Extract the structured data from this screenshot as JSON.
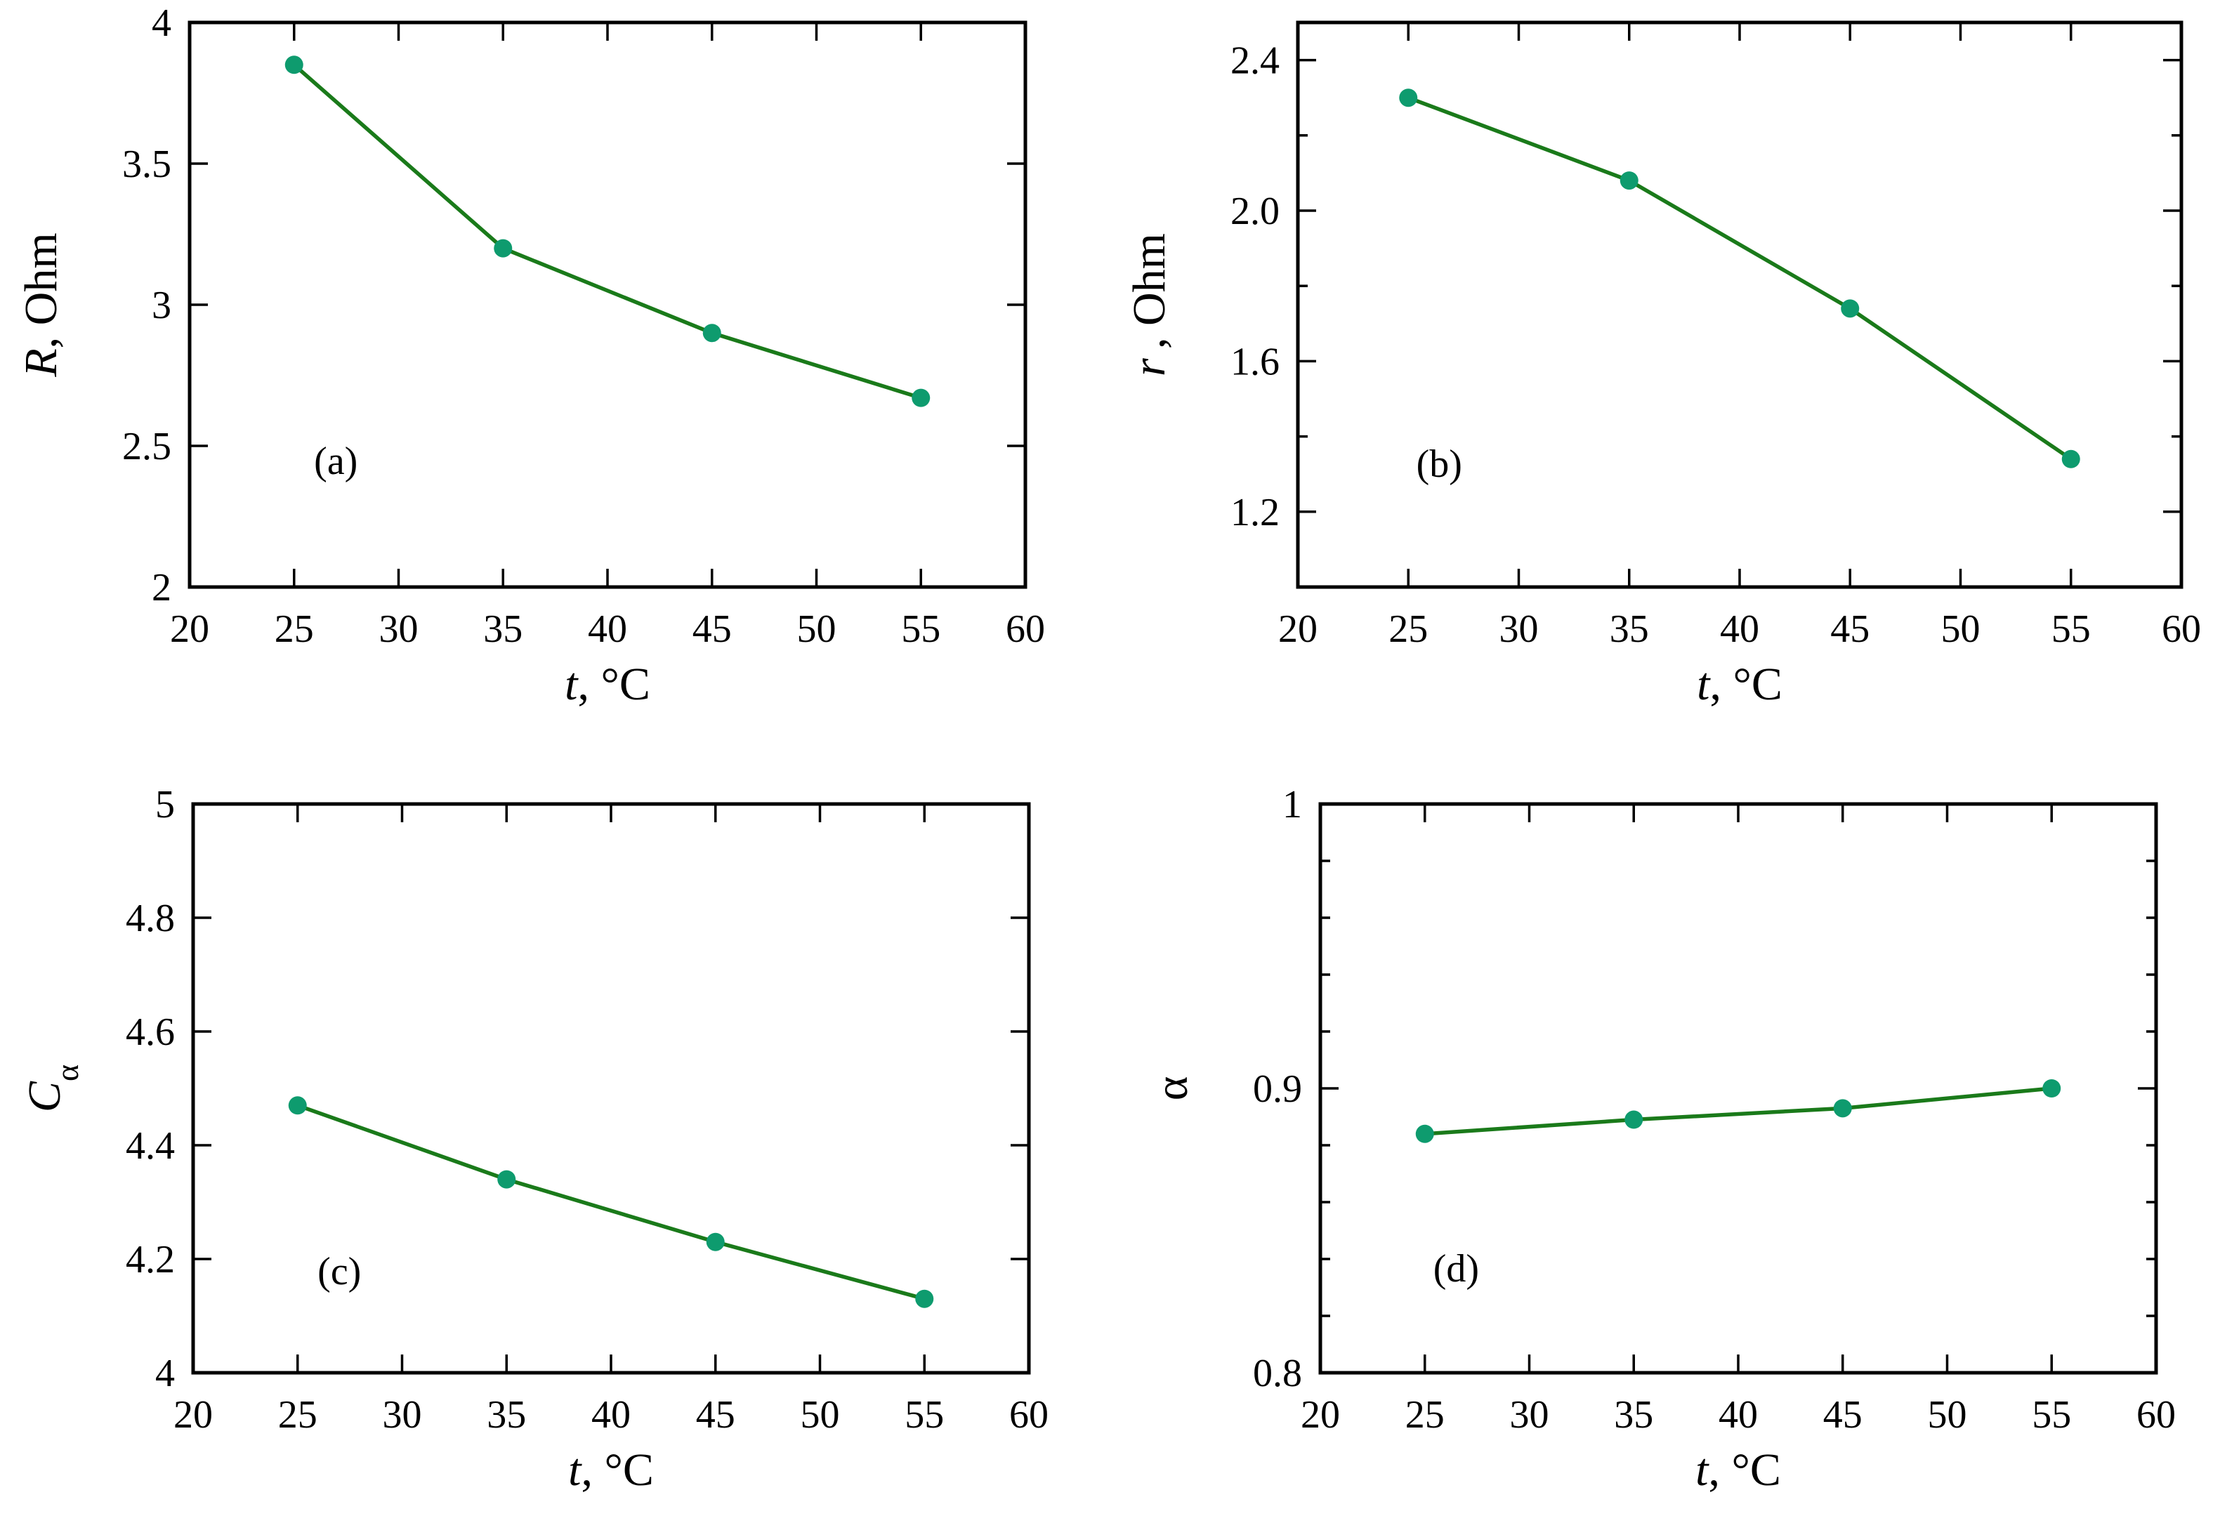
{
  "colors": {
    "line": "#1a7a1a",
    "marker": "#0e9b6e"
  },
  "chart_data": [
    {
      "type": "line",
      "panel": "(a)",
      "xlabel_italic": "t",
      "xlabel_rest": ", °C",
      "ylabel_italic": "R",
      "ylabel_rest": ", Ohm",
      "ylabel_sub": "",
      "x": [
        25,
        35,
        45,
        55
      ],
      "values": [
        3.85,
        3.2,
        2.9,
        2.67
      ],
      "xlim": [
        20,
        60
      ],
      "ylim": [
        2,
        4
      ],
      "xticks": [
        20,
        25,
        30,
        35,
        40,
        45,
        50,
        55,
        60
      ],
      "yticks": [
        2,
        2.5,
        3,
        3.5,
        4
      ],
      "ytick_labels": [
        "2",
        "2.5",
        "3",
        "3.5",
        "4"
      ],
      "panel_label_pos": [
        27,
        2.45
      ]
    },
    {
      "type": "line",
      "panel": "(b)",
      "xlabel_italic": "t",
      "xlabel_rest": ", °C",
      "ylabel_italic": "r",
      "ylabel_rest": " , Ohm",
      "ylabel_sub": "",
      "x": [
        25,
        35,
        45,
        55
      ],
      "values": [
        2.3,
        2.08,
        1.74,
        1.34
      ],
      "xlim": [
        20,
        60
      ],
      "ylim": [
        1.0,
        2.5
      ],
      "xticks": [
        20,
        25,
        30,
        35,
        40,
        45,
        50,
        55,
        60
      ],
      "yticks": [
        1.2,
        1.6,
        2.0,
        2.4
      ],
      "ytick_labels": [
        "1.2",
        "1.6",
        "2.0",
        "2.4"
      ],
      "minor_yticks": [
        1.4,
        1.8,
        2.2
      ],
      "panel_label_pos": [
        26.4,
        1.33
      ]
    },
    {
      "type": "line",
      "panel": "(c)",
      "xlabel_italic": "t",
      "xlabel_rest": ", °C",
      "ylabel_italic": "C",
      "ylabel_rest": "",
      "ylabel_sub": "α",
      "x": [
        25,
        35,
        45,
        55
      ],
      "values": [
        4.47,
        4.34,
        4.23,
        4.13
      ],
      "xlim": [
        20,
        60
      ],
      "ylim": [
        4,
        5
      ],
      "xticks": [
        20,
        25,
        30,
        35,
        40,
        45,
        50,
        55,
        60
      ],
      "yticks": [
        4,
        4.2,
        4.4,
        4.6,
        4.8,
        5
      ],
      "ytick_labels": [
        "4",
        "4.2",
        "4.4",
        "4.6",
        "4.8",
        "5"
      ],
      "panel_label_pos": [
        27,
        4.18
      ]
    },
    {
      "type": "line",
      "panel": "(d)",
      "xlabel_italic": "t",
      "xlabel_rest": ", °C",
      "ylabel_italic": "",
      "ylabel_rest": "α",
      "ylabel_sub": "",
      "x": [
        25,
        35,
        45,
        55
      ],
      "values": [
        0.884,
        0.889,
        0.893,
        0.9
      ],
      "xlim": [
        20,
        60
      ],
      "ylim": [
        0.8,
        1
      ],
      "xticks": [
        20,
        25,
        30,
        35,
        40,
        45,
        50,
        55,
        60
      ],
      "yticks": [
        0.8,
        0.9,
        1
      ],
      "ytick_labels": [
        "0.8",
        "0.9",
        "1"
      ],
      "minor_yticks": [
        0.82,
        0.84,
        0.86,
        0.88,
        0.92,
        0.94,
        0.96,
        0.98
      ],
      "panel_label_pos": [
        26.5,
        0.837
      ]
    }
  ]
}
